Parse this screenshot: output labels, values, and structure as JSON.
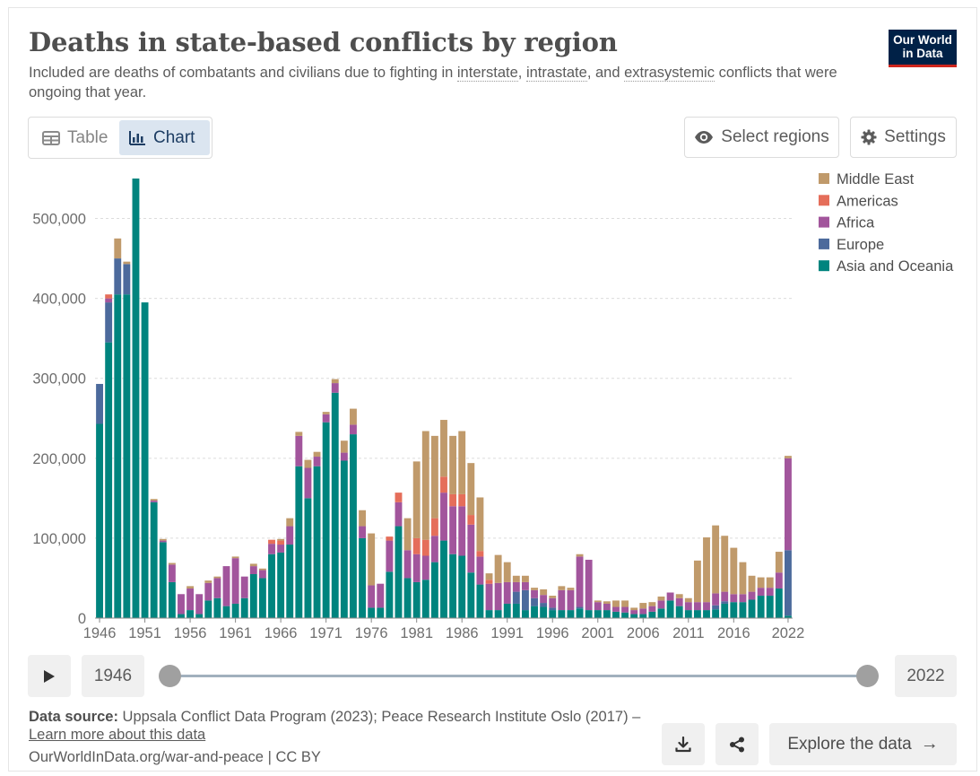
{
  "header": {
    "title": "Deaths in state-based conflicts by region",
    "subtitle_before": "Included are deaths of combatants and civilians due to fighting in ",
    "term_interstate": "interstate",
    "sep_comma": ",",
    "sep_and": ", and",
    "term_intrastate": "intrastate",
    "term_extrasystemic": "extrasystemic",
    "subtitle_after": " conflicts that were ongoing that year.",
    "logo_line1": "Our World",
    "logo_line2": "in Data"
  },
  "toolbar": {
    "table_label": "Table",
    "chart_label": "Chart",
    "active_tab": "Chart",
    "select_regions_label": "Select regions",
    "settings_label": "Settings"
  },
  "timeline": {
    "start_year": "1946",
    "end_year": "2022"
  },
  "footer": {
    "source_bold": "Data source:",
    "source_text": " Uppsala Conflict Data Program (2023); Peace Research Institute Oslo (2017) – ",
    "learn_more": "Learn more about this data",
    "url_line": "OurWorldInData.org/war-and-peace | CC BY",
    "explore_label": "Explore the data"
  },
  "chart_data": {
    "type": "bar",
    "stacked": true,
    "title": "Deaths in state-based conflicts by region",
    "ylim": [
      0,
      550000
    ],
    "yticks": [
      0,
      100000,
      200000,
      300000,
      400000,
      500000
    ],
    "ytick_labels": [
      "0",
      "100,000",
      "200,000",
      "300,000",
      "400,000",
      "500,000"
    ],
    "xtick_labels": [
      "1946",
      "1951",
      "1956",
      "1961",
      "1966",
      "1971",
      "1976",
      "1981",
      "1986",
      "1991",
      "1996",
      "2001",
      "2006",
      "2011",
      "2016",
      "2022"
    ],
    "grid": "horizontal-dashed",
    "legend_position": "top-right",
    "categories": [
      1946,
      1947,
      1948,
      1949,
      1950,
      1951,
      1952,
      1953,
      1954,
      1955,
      1956,
      1957,
      1958,
      1959,
      1960,
      1961,
      1962,
      1963,
      1964,
      1965,
      1966,
      1967,
      1968,
      1969,
      1970,
      1971,
      1972,
      1973,
      1974,
      1975,
      1976,
      1977,
      1978,
      1979,
      1980,
      1981,
      1982,
      1983,
      1984,
      1985,
      1986,
      1987,
      1988,
      1989,
      1990,
      1991,
      1992,
      1993,
      1994,
      1995,
      1996,
      1997,
      1998,
      1999,
      2000,
      2001,
      2002,
      2003,
      2004,
      2005,
      2006,
      2007,
      2008,
      2009,
      2010,
      2011,
      2012,
      2013,
      2014,
      2015,
      2016,
      2017,
      2018,
      2019,
      2020,
      2021,
      2022
    ],
    "series": [
      {
        "name": "Asia and Oceania",
        "color": "#00847e",
        "values": [
          243000,
          345000,
          405000,
          405000,
          550000,
          395000,
          145000,
          95000,
          45000,
          5000,
          10000,
          5000,
          22000,
          25000,
          15000,
          18000,
          25000,
          55000,
          50000,
          80000,
          82000,
          92000,
          190000,
          150000,
          190000,
          245000,
          282000,
          197000,
          230000,
          100000,
          13000,
          13000,
          58000,
          115000,
          50000,
          45000,
          48000,
          70000,
          97000,
          80000,
          78000,
          57000,
          42000,
          10000,
          10000,
          18000,
          18000,
          10000,
          15000,
          14000,
          10000,
          10000,
          10000,
          12000,
          10000,
          10000,
          10000,
          8000,
          7000,
          5000,
          5000,
          8000,
          12000,
          22000,
          15000,
          10000,
          10000,
          10000,
          11000,
          18000,
          20000,
          20000,
          23000,
          28000,
          28000,
          37000,
          3000
        ]
      },
      {
        "name": "Europe",
        "color": "#4c6a9c",
        "values": [
          50000,
          50000,
          45000,
          38000,
          0,
          0,
          0,
          0,
          0,
          0,
          0,
          0,
          0,
          0,
          0,
          0,
          0,
          0,
          0,
          0,
          0,
          0,
          0,
          0,
          0,
          0,
          0,
          0,
          0,
          0,
          0,
          0,
          0,
          0,
          0,
          0,
          0,
          0,
          0,
          0,
          0,
          0,
          0,
          0,
          0,
          0,
          15000,
          25000,
          10000,
          5000,
          3000,
          0,
          0,
          2000,
          0,
          0,
          0,
          0,
          0,
          0,
          0,
          0,
          0,
          0,
          0,
          0,
          0,
          0,
          5000,
          3000,
          0,
          0,
          0,
          0,
          0,
          0,
          82000
        ]
      },
      {
        "name": "Africa",
        "color": "#a2559c",
        "values": [
          0,
          5000,
          0,
          0,
          0,
          0,
          2000,
          2000,
          22000,
          25000,
          27000,
          25000,
          22000,
          25000,
          50000,
          57000,
          27000,
          10000,
          10000,
          13000,
          10000,
          23000,
          38000,
          38000,
          12000,
          10000,
          12000,
          10000,
          12000,
          15000,
          28000,
          30000,
          39000,
          30000,
          35000,
          35000,
          30000,
          33000,
          60000,
          60000,
          62000,
          60000,
          35000,
          33000,
          34000,
          27000,
          12000,
          10000,
          10000,
          10000,
          12000,
          25000,
          25000,
          63000,
          63000,
          10000,
          8000,
          6000,
          7000,
          5000,
          7000,
          7000,
          10000,
          10000,
          10000,
          10000,
          10000,
          10000,
          15000,
          12000,
          10000,
          10000,
          10000,
          10000,
          10000,
          20000,
          115000
        ]
      },
      {
        "name": "Americas",
        "color": "#e56e5a",
        "values": [
          0,
          5000,
          0,
          0,
          0,
          0,
          0,
          0,
          0,
          0,
          0,
          0,
          0,
          0,
          0,
          0,
          0,
          0,
          0,
          5000,
          5000,
          0,
          0,
          0,
          0,
          0,
          0,
          0,
          0,
          0,
          0,
          0,
          5000,
          12000,
          0,
          20000,
          20000,
          22000,
          20000,
          15000,
          15000,
          12000,
          7000,
          5000,
          0,
          0,
          0,
          0,
          0,
          0,
          0,
          0,
          0,
          0,
          0,
          0,
          0,
          0,
          0,
          0,
          0,
          0,
          0,
          0,
          0,
          0,
          0,
          0,
          0,
          0,
          0,
          0,
          0,
          0,
          0,
          0,
          0
        ]
      },
      {
        "name": "Middle East",
        "color": "#c09a6b",
        "values": [
          0,
          0,
          25000,
          3000,
          0,
          0,
          2000,
          2000,
          2000,
          0,
          3000,
          0,
          3000,
          2000,
          0,
          2000,
          0,
          3000,
          2000,
          0,
          2000,
          10000,
          5000,
          10000,
          6000,
          3000,
          5000,
          15000,
          20000,
          20000,
          65000,
          0,
          0,
          0,
          40000,
          96000,
          136000,
          103000,
          71000,
          73000,
          79000,
          65000,
          67000,
          8000,
          35000,
          25000,
          8000,
          8000,
          3000,
          7000,
          3000,
          5000,
          3000,
          3000,
          0,
          2000,
          3000,
          8000,
          8000,
          3000,
          7000,
          5000,
          5000,
          0,
          5000,
          5000,
          52000,
          81000,
          85000,
          70000,
          58000,
          40000,
          20000,
          13000,
          13000,
          26000,
          3000
        ]
      }
    ]
  }
}
